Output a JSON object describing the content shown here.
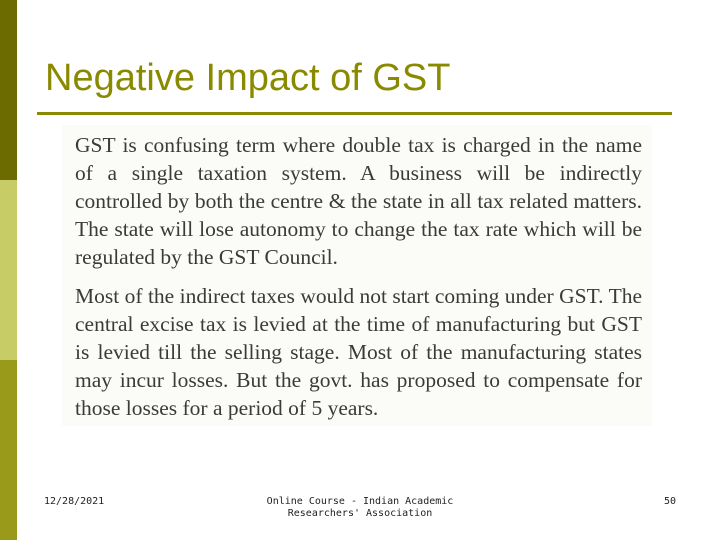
{
  "slide": {
    "title": "Negative Impact of GST",
    "paragraphs": [
      "GST is confusing term where double tax is charged in the name of a single taxation system. A business will be indirectly controlled by both the centre & the state in all tax related matters. The state will lose autonomy to change the tax rate which will be regulated by the GST Council.",
      "Most of the indirect taxes would not start coming under GST. The central excise tax is levied at the time of manufacturing but GST is levied till the selling stage. Most of the manufacturing states may incur losses. But the govt. has proposed to compensate for those losses for a period of 5 years."
    ]
  },
  "footer": {
    "date": "12/28/2021",
    "center_line1": "Online Course - Indian Academic",
    "center_line2": "Researchers' Association",
    "page_number": "50"
  },
  "colors": {
    "title": "#8a8a00",
    "sidebar_dark": "#6b6b00",
    "sidebar_light": "#c8cc66",
    "sidebar_mid": "#999a1a"
  }
}
